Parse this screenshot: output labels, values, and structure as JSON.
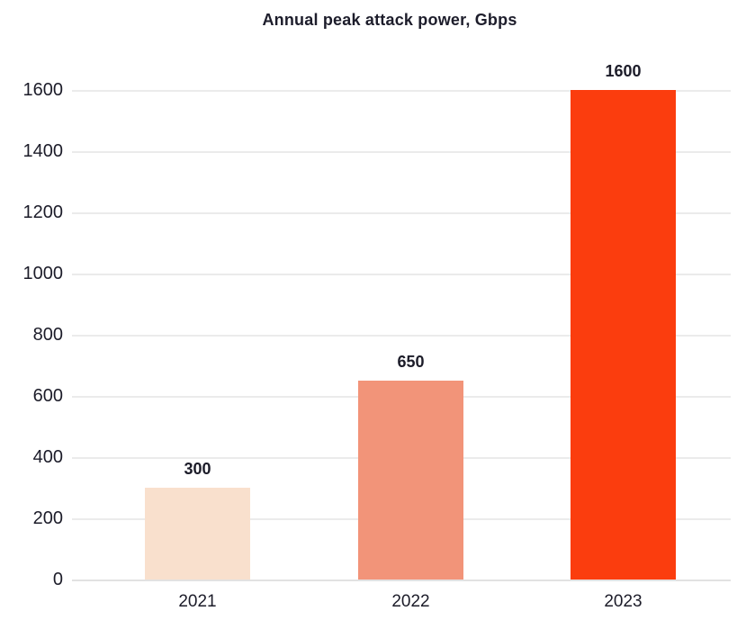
{
  "chart_data": {
    "type": "bar",
    "title": "Annual peak attack power, Gbps",
    "categories": [
      "2021",
      "2022",
      "2023"
    ],
    "values": [
      300,
      650,
      1600
    ],
    "value_labels": [
      "300",
      "650",
      "1600"
    ],
    "bar_colors": [
      "#f9e0cd",
      "#f29479",
      "#fb3d0e"
    ],
    "xlabel": "",
    "ylabel": "",
    "ylim": [
      0,
      1600
    ],
    "yticks": [
      0,
      200,
      400,
      600,
      800,
      1000,
      1200,
      1400,
      1600
    ],
    "grid": "horizontal",
    "legend_position": "none",
    "background_color": "#ffffff"
  },
  "colors": {
    "text": "#1c1c29",
    "gridline": "#ebebeb",
    "baseline": "#e2e2e2"
  }
}
